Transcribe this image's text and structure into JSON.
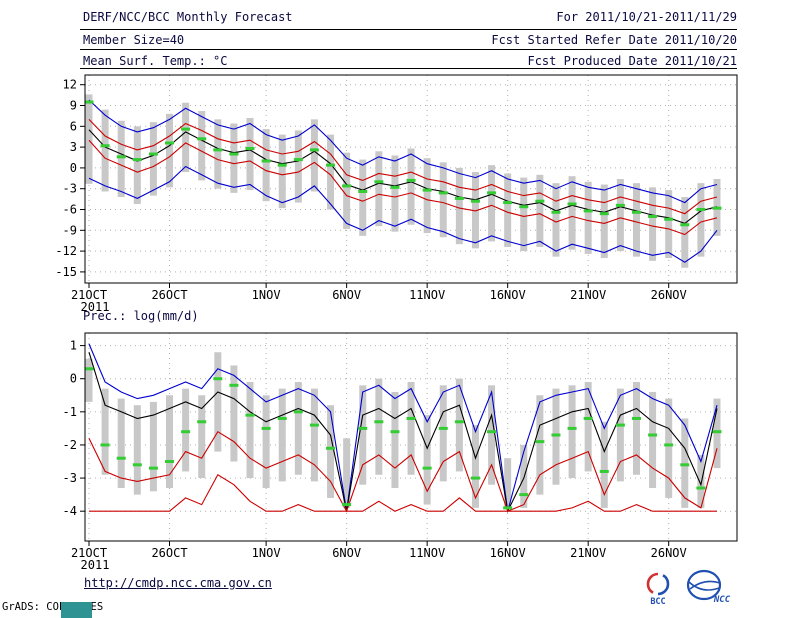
{
  "header": {
    "title": "DERF/NCC/BCC Monthly Forecast",
    "member_size": "Member Size=40",
    "for_range": "For 2011/10/21-2011/11/29",
    "fcst_started": "Fcst Started Refer Date 2011/10/20",
    "fcst_produced": "Fcst Produced Date 2011/10/21"
  },
  "footer": {
    "url": "http://cmdp.ncc.cma.gov.cn",
    "grads_credit": "GrADS: COLA/IGES",
    "logo_bcc_label": "BCC",
    "logo_ncc_label": "NCC"
  },
  "colors": {
    "header_text": "#0a0a40",
    "axis_text": "#000000",
    "grid": "#b0b0b0",
    "bar": "#c8c8c8",
    "max_line": "#0000d0",
    "median_line": "#000000",
    "quartile_line": "#cc0000",
    "green_dash": "#33cc33",
    "teal_block": "#2f9394",
    "logo_red": "#d03030",
    "logo_blue": "#2050b0"
  },
  "chart_data": [
    {
      "type": "line",
      "name": "temperature-chart",
      "title": "Mean Surf. Temp.: °C",
      "ylabel": "degC",
      "ylim": [
        -15,
        12
      ],
      "yticks": [
        12,
        9,
        6,
        3,
        0,
        -3,
        -6,
        -9,
        -12,
        -15
      ],
      "x_axis": "days from 2011/10/21 to 2011/11/29",
      "n_points": 40,
      "x_ticks": [
        {
          "day": 0,
          "label": "21OCT",
          "year": "2011"
        },
        {
          "day": 5,
          "label": "26OCT"
        },
        {
          "day": 11,
          "label": "1NOV"
        },
        {
          "day": 16,
          "label": "6NOV"
        },
        {
          "day": 21,
          "label": "11NOV"
        },
        {
          "day": 26,
          "label": "16NOV"
        },
        {
          "day": 31,
          "label": "21NOV"
        },
        {
          "day": 36,
          "label": "26NOV"
        }
      ],
      "series": [
        {
          "name": "blue-max",
          "color_key": "max_line",
          "values": [
            9.8,
            7.6,
            6.0,
            5.2,
            5.8,
            7.0,
            8.6,
            7.4,
            6.2,
            5.6,
            6.4,
            4.8,
            4.0,
            4.6,
            6.2,
            4.0,
            1.4,
            0.4,
            1.6,
            1.0,
            2.0,
            0.6,
            0.0,
            -0.8,
            -1.4,
            -0.4,
            -1.6,
            -2.2,
            -1.8,
            -3.0,
            -2.0,
            -2.8,
            -3.2,
            -2.4,
            -3.0,
            -3.6,
            -4.0,
            -5.0,
            -3.0,
            -2.4
          ]
        },
        {
          "name": "red-upper",
          "color_key": "quartile_line",
          "values": [
            7.0,
            4.6,
            3.4,
            2.6,
            3.2,
            4.6,
            6.4,
            5.4,
            4.2,
            3.6,
            4.0,
            2.6,
            2.0,
            2.4,
            3.8,
            2.0,
            -1.0,
            -1.8,
            -0.8,
            -1.2,
            -0.6,
            -1.6,
            -2.0,
            -2.8,
            -3.2,
            -2.4,
            -3.4,
            -4.0,
            -3.6,
            -4.8,
            -4.0,
            -4.6,
            -5.0,
            -4.2,
            -4.8,
            -5.4,
            -5.8,
            -6.6,
            -4.8,
            -4.2
          ]
        },
        {
          "name": "black-median",
          "color_key": "median_line",
          "values": [
            5.5,
            3.0,
            2.0,
            1.0,
            1.8,
            3.2,
            5.2,
            4.0,
            2.8,
            2.2,
            2.6,
            1.2,
            0.6,
            1.0,
            2.4,
            0.6,
            -2.4,
            -3.2,
            -2.2,
            -2.6,
            -2.0,
            -3.0,
            -3.4,
            -4.2,
            -4.6,
            -3.8,
            -4.8,
            -5.4,
            -5.0,
            -6.2,
            -5.4,
            -6.0,
            -6.4,
            -5.6,
            -6.2,
            -6.8,
            -7.2,
            -8.0,
            -6.2,
            -5.6
          ]
        },
        {
          "name": "red-lower",
          "color_key": "quartile_line",
          "values": [
            4.0,
            1.4,
            0.4,
            -0.6,
            0.2,
            1.6,
            3.6,
            2.4,
            1.2,
            0.6,
            1.0,
            -0.4,
            -1.0,
            -0.6,
            0.8,
            -1.0,
            -4.0,
            -4.8,
            -3.8,
            -4.2,
            -3.6,
            -4.6,
            -5.0,
            -5.8,
            -6.2,
            -5.4,
            -6.4,
            -7.0,
            -6.6,
            -7.8,
            -7.0,
            -7.6,
            -8.0,
            -7.2,
            -7.8,
            -8.4,
            -8.8,
            -9.6,
            -7.8,
            -7.2
          ]
        },
        {
          "name": "blue-min",
          "color_key": "max_line",
          "values": [
            -1.5,
            -2.6,
            -3.4,
            -4.4,
            -3.2,
            -2.0,
            0.2,
            -1.0,
            -2.2,
            -2.8,
            -2.4,
            -4.0,
            -5.0,
            -4.2,
            -2.6,
            -5.2,
            -8.0,
            -9.0,
            -7.6,
            -8.4,
            -7.4,
            -8.6,
            -9.2,
            -10.2,
            -10.8,
            -9.8,
            -10.6,
            -11.2,
            -10.6,
            -12.0,
            -11.0,
            -11.6,
            -12.2,
            -11.2,
            -12.0,
            -12.6,
            -12.2,
            -13.6,
            -12.0,
            -9.0
          ]
        }
      ],
      "spread_bars": {
        "top": [
          10.6,
          8.4,
          6.8,
          6.0,
          6.6,
          7.8,
          9.4,
          8.2,
          7.0,
          6.4,
          7.2,
          5.6,
          4.8,
          5.4,
          7.0,
          4.8,
          2.2,
          1.2,
          2.4,
          1.8,
          2.8,
          1.4,
          0.8,
          0.0,
          -0.6,
          0.4,
          -0.8,
          -1.4,
          -1.0,
          -2.2,
          -1.2,
          -2.0,
          -2.4,
          -1.6,
          -2.2,
          -2.8,
          -3.2,
          -4.2,
          -2.2,
          -1.6
        ],
        "bottom": [
          -2.3,
          -3.4,
          -4.2,
          -5.2,
          -4.0,
          -2.8,
          -0.6,
          -1.8,
          -3.0,
          -3.6,
          -3.2,
          -4.8,
          -5.8,
          -5.0,
          -3.4,
          -6.0,
          -8.8,
          -9.8,
          -8.4,
          -9.2,
          -8.2,
          -9.4,
          -10.0,
          -11.0,
          -11.6,
          -10.6,
          -11.4,
          -12.0,
          -11.4,
          -12.8,
          -11.8,
          -12.4,
          -13.0,
          -12.0,
          -12.8,
          -13.4,
          -13.0,
          -14.4,
          -12.8,
          -9.8
        ]
      },
      "green_dashes": [
        9.5,
        3.2,
        1.6,
        1.2,
        2.0,
        3.6,
        5.6,
        4.2,
        2.6,
        2.0,
        2.8,
        1.0,
        0.4,
        1.2,
        2.6,
        0.4,
        -2.6,
        -3.4,
        -2.0,
        -2.8,
        -1.8,
        -3.2,
        -3.6,
        -4.4,
        -4.8,
        -3.6,
        -5.0,
        -5.6,
        -4.8,
        -6.4,
        -5.2,
        -6.2,
        -6.6,
        -5.4,
        -6.4,
        -7.0,
        -7.4,
        -8.2,
        -6.0,
        -5.8
      ]
    },
    {
      "type": "line",
      "name": "precipitation-chart",
      "title": "Prec.: log(mm/d)",
      "ylabel": "log(mm/d)",
      "ylim": [
        -4,
        1
      ],
      "yticks": [
        1,
        0,
        -1,
        -2,
        -3,
        -4
      ],
      "x_axis": "days from 2011/10/21 to 2011/11/29",
      "n_points": 40,
      "x_ticks": [
        {
          "day": 0,
          "label": "21OCT",
          "year": "2011"
        },
        {
          "day": 5,
          "label": "26OCT"
        },
        {
          "day": 11,
          "label": "1NOV"
        },
        {
          "day": 16,
          "label": "6NOV"
        },
        {
          "day": 21,
          "label": "11NOV"
        },
        {
          "day": 26,
          "label": "16NOV"
        },
        {
          "day": 31,
          "label": "21NOV"
        },
        {
          "day": 36,
          "label": "26NOV"
        }
      ],
      "series": [
        {
          "name": "blue-max",
          "color_key": "max_line",
          "values": [
            1.05,
            -0.1,
            -0.4,
            -0.6,
            -0.5,
            -0.3,
            -0.1,
            -0.3,
            0.3,
            0.1,
            -0.3,
            -0.7,
            -0.5,
            -0.3,
            -0.5,
            -1.0,
            -4.0,
            -0.4,
            -0.2,
            -0.6,
            -0.3,
            -1.3,
            -0.4,
            -0.2,
            -1.6,
            -0.4,
            -4.0,
            -2.2,
            -0.7,
            -0.5,
            -0.4,
            -0.3,
            -1.5,
            -0.5,
            -0.3,
            -0.6,
            -0.8,
            -1.4,
            -2.5,
            -0.8
          ]
        },
        {
          "name": "black-median",
          "color_key": "median_line",
          "values": [
            0.8,
            -0.8,
            -1.0,
            -1.2,
            -1.1,
            -0.9,
            -0.7,
            -0.9,
            -0.4,
            -0.6,
            -1.0,
            -1.3,
            -1.1,
            -0.9,
            -1.1,
            -1.7,
            -4.0,
            -1.1,
            -0.9,
            -1.2,
            -0.9,
            -2.1,
            -1.0,
            -0.8,
            -2.4,
            -1.1,
            -4.0,
            -3.0,
            -1.4,
            -1.2,
            -1.0,
            -0.9,
            -2.2,
            -1.1,
            -0.9,
            -1.3,
            -1.5,
            -2.1,
            -3.2,
            -0.9
          ]
        },
        {
          "name": "red-lower",
          "color_key": "quartile_line",
          "values": [
            -1.8,
            -2.8,
            -3.0,
            -3.1,
            -3.0,
            -2.9,
            -2.2,
            -2.4,
            -1.6,
            -1.9,
            -2.4,
            -2.7,
            -2.5,
            -2.3,
            -2.6,
            -3.1,
            -4.0,
            -2.6,
            -2.3,
            -2.7,
            -2.3,
            -3.4,
            -2.5,
            -2.2,
            -3.6,
            -2.6,
            -4.0,
            -3.8,
            -2.9,
            -2.6,
            -2.4,
            -2.2,
            -3.5,
            -2.5,
            -2.3,
            -2.7,
            -3.0,
            -3.6,
            -3.9,
            -2.1
          ]
        },
        {
          "name": "red-min",
          "color_key": "quartile_line",
          "values": [
            -4.0,
            -4.0,
            -4.0,
            -4.0,
            -4.0,
            -4.0,
            -3.6,
            -3.8,
            -2.9,
            -3.2,
            -3.7,
            -4.0,
            -4.0,
            -3.8,
            -4.0,
            -4.0,
            -4.0,
            -4.0,
            -3.7,
            -4.0,
            -3.8,
            -4.0,
            -4.0,
            -3.6,
            -4.0,
            -4.0,
            -4.0,
            -4.0,
            -4.0,
            -4.0,
            -3.9,
            -3.7,
            -4.0,
            -4.0,
            -3.8,
            -4.0,
            -4.0,
            -4.0,
            -4.0,
            -4.0
          ]
        }
      ],
      "spread_bars": {
        "top": [
          0.6,
          -0.3,
          -0.6,
          -0.8,
          -0.7,
          -0.5,
          -0.3,
          -0.5,
          0.8,
          0.4,
          -0.1,
          -0.5,
          -0.3,
          -0.1,
          -0.3,
          -0.8,
          -1.8,
          -0.2,
          0.0,
          -0.4,
          -0.1,
          -1.1,
          -0.2,
          0.0,
          -1.4,
          -0.2,
          -2.4,
          -2.0,
          -0.5,
          -0.3,
          -0.2,
          -0.1,
          -1.3,
          -0.3,
          -0.1,
          -0.4,
          -0.6,
          -1.2,
          -2.3,
          -0.6
        ],
        "bottom": [
          -0.7,
          -2.9,
          -3.3,
          -3.5,
          -3.4,
          -3.3,
          -2.8,
          -3.0,
          -2.2,
          -2.5,
          -3.0,
          -3.3,
          -3.1,
          -2.9,
          -3.1,
          -3.6,
          -3.9,
          -3.2,
          -2.9,
          -3.3,
          -2.9,
          -3.8,
          -3.1,
          -2.8,
          -3.9,
          -3.2,
          -3.9,
          -3.9,
          -3.5,
          -3.2,
          -3.0,
          -2.8,
          -3.9,
          -3.1,
          -2.9,
          -3.3,
          -3.6,
          -3.9,
          -3.9,
          -2.7
        ]
      },
      "green_dashes": [
        0.3,
        -2.0,
        -2.4,
        -2.6,
        -2.7,
        -2.5,
        -1.6,
        -1.3,
        0.0,
        -0.2,
        -1.1,
        -1.5,
        -1.2,
        -1.0,
        -1.4,
        -2.1,
        -3.8,
        -1.5,
        -1.3,
        -1.6,
        -1.2,
        -2.7,
        -1.5,
        -1.3,
        -3.0,
        -1.6,
        -3.9,
        -3.5,
        -1.9,
        -1.7,
        -1.5,
        -1.2,
        -2.8,
        -1.4,
        -1.2,
        -1.7,
        -2.0,
        -2.6,
        -3.3,
        -1.6
      ]
    }
  ]
}
